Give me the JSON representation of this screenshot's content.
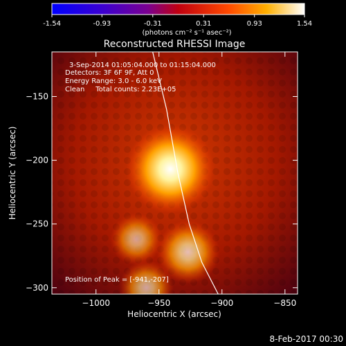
{
  "colorbar": {
    "ticks": [
      "-1.54",
      "-0.93",
      "-0.31",
      "0.31",
      "0.93",
      "1.54"
    ],
    "tick_values": [
      -1.54,
      -0.93,
      -0.31,
      0.31,
      0.93,
      1.54
    ],
    "unit_label": "(photons cm⁻² s⁻¹ asec⁻²)",
    "colormap": "rhessi-red-temperature"
  },
  "chart_data": {
    "type": "heatmap",
    "title": "Reconstructed RHESSI Image",
    "xlabel": "Heliocentric X (arcsec)",
    "ylabel": "Heliocentric Y (arcsec)",
    "xlim": [
      -1035,
      -840
    ],
    "ylim": [
      -305,
      -115
    ],
    "x_ticks": [
      -1000,
      -950,
      -900,
      -850
    ],
    "y_ticks": [
      -150,
      -200,
      -250,
      -300
    ],
    "x_tick_labels": [
      "−1000",
      "−950",
      "−900",
      "−850"
    ],
    "y_tick_labels": [
      "−150",
      "−200",
      "−250",
      "−300"
    ],
    "annotations": [
      "3-Sep-2014 01:05:04.000 to 01:15:04.000",
      "Detectors: 3F 6F 9F, Att 0",
      "Energy Range: 3.0 - 6.0 keV",
      "Clean     Total counts: 2.23E+05"
    ],
    "peak_label": "Position of Peak = [-941,-207]",
    "sources": [
      {
        "x": -941,
        "y": -207,
        "intensity": 1.0
      },
      {
        "x": -927,
        "y": -272,
        "intensity": 0.55
      },
      {
        "x": -968,
        "y": -262,
        "intensity": 0.35
      },
      {
        "x": -960,
        "y": -300,
        "intensity": 0.4
      }
    ],
    "limb": [
      [
        -955,
        -115
      ],
      [
        -944,
        -160
      ],
      [
        -935,
        -210
      ],
      [
        -926,
        -250
      ],
      [
        -916,
        -280
      ],
      [
        -903,
        -305
      ]
    ]
  },
  "footer": {
    "timestamp": "8-Feb-2017 00:30"
  }
}
